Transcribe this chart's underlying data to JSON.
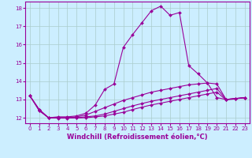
{
  "xlabel": "Windchill (Refroidissement éolien,°C)",
  "bg_color": "#cceeff",
  "line_color": "#990099",
  "grid_color": "#aacccc",
  "xlim": [
    -0.5,
    23.5
  ],
  "ylim": [
    11.7,
    18.35
  ],
  "xticks": [
    0,
    1,
    2,
    3,
    4,
    5,
    6,
    7,
    8,
    9,
    10,
    11,
    12,
    13,
    14,
    15,
    16,
    17,
    18,
    19,
    20,
    21,
    22,
    23
  ],
  "yticks": [
    12,
    13,
    14,
    15,
    16,
    17,
    18
  ],
  "series": [
    {
      "x": [
        0,
        1,
        2,
        3,
        4,
        5,
        6,
        7,
        8,
        9,
        10,
        11,
        12,
        13,
        14,
        15,
        16,
        17,
        18,
        19,
        20,
        21,
        22,
        23
      ],
      "y": [
        13.2,
        12.45,
        12.0,
        12.05,
        12.05,
        12.1,
        12.25,
        12.7,
        13.55,
        13.85,
        15.85,
        16.55,
        17.2,
        17.85,
        18.1,
        17.6,
        17.75,
        14.85,
        14.4,
        13.9,
        13.1,
        13.0,
        13.05,
        13.1
      ]
    },
    {
      "x": [
        0,
        1,
        2,
        3,
        4,
        5,
        6,
        7,
        8,
        9,
        10,
        11,
        12,
        13,
        14,
        15,
        16,
        17,
        18,
        19,
        20,
        21,
        22,
        23
      ],
      "y": [
        13.2,
        12.45,
        12.0,
        12.0,
        12.0,
        12.05,
        12.15,
        12.35,
        12.55,
        12.75,
        12.95,
        13.1,
        13.25,
        13.4,
        13.5,
        13.6,
        13.7,
        13.8,
        13.85,
        13.9,
        13.85,
        13.0,
        13.05,
        13.1
      ]
    },
    {
      "x": [
        0,
        1,
        2,
        3,
        4,
        5,
        6,
        7,
        8,
        9,
        10,
        11,
        12,
        13,
        14,
        15,
        16,
        17,
        18,
        19,
        20,
        21,
        22,
        23
      ],
      "y": [
        13.2,
        12.4,
        12.0,
        12.0,
        12.0,
        12.0,
        12.05,
        12.1,
        12.2,
        12.35,
        12.5,
        12.65,
        12.78,
        12.9,
        13.0,
        13.1,
        13.2,
        13.3,
        13.4,
        13.5,
        13.6,
        13.0,
        13.05,
        13.1
      ]
    },
    {
      "x": [
        0,
        1,
        2,
        3,
        4,
        5,
        6,
        7,
        8,
        9,
        10,
        11,
        12,
        13,
        14,
        15,
        16,
        17,
        18,
        19,
        20,
        21,
        22,
        23
      ],
      "y": [
        13.2,
        12.38,
        12.0,
        11.98,
        11.98,
        11.99,
        12.0,
        12.05,
        12.1,
        12.2,
        12.3,
        12.45,
        12.58,
        12.7,
        12.8,
        12.9,
        13.0,
        13.1,
        13.2,
        13.3,
        13.4,
        12.98,
        13.03,
        13.1
      ]
    }
  ],
  "tick_fontsize": 5.0,
  "label_fontsize": 6.0,
  "markersize": 2.0,
  "linewidth": 0.8
}
